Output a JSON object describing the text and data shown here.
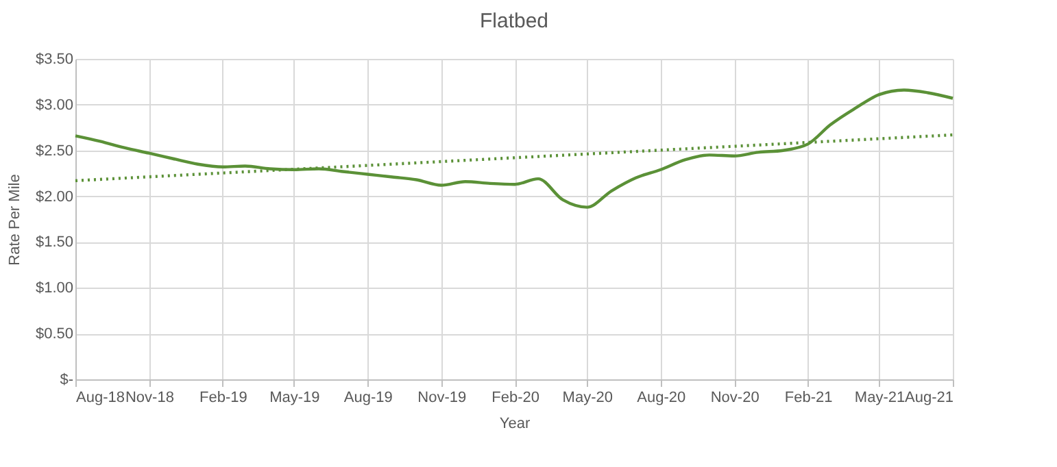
{
  "chart_data": {
    "type": "line",
    "title": "Flatbed",
    "xlabel": "Year",
    "ylabel": "Rate Per Mile",
    "x": [
      "2018-08",
      "2018-09",
      "2018-10",
      "2018-11",
      "2018-12",
      "2019-01",
      "2019-02",
      "2019-03",
      "2019-04",
      "2019-05",
      "2019-06",
      "2019-07",
      "2019-08",
      "2019-09",
      "2019-10",
      "2019-11",
      "2019-12",
      "2020-01",
      "2020-02",
      "2020-03",
      "2020-04",
      "2020-05",
      "2020-06",
      "2020-07",
      "2020-08",
      "2020-09",
      "2020-10",
      "2020-11",
      "2020-12",
      "2021-01",
      "2021-02",
      "2021-03",
      "2021-04",
      "2021-05",
      "2021-06",
      "2021-07",
      "2021-08"
    ],
    "series": [
      {
        "color": "#5b9137",
        "values": [
          2.66,
          2.6,
          2.53,
          2.47,
          2.41,
          2.35,
          2.32,
          2.33,
          2.3,
          2.29,
          2.3,
          2.27,
          2.24,
          2.21,
          2.18,
          2.12,
          2.16,
          2.14,
          2.13,
          2.19,
          1.96,
          1.88,
          2.06,
          2.2,
          2.29,
          2.4,
          2.45,
          2.44,
          2.48,
          2.5,
          2.57,
          2.78,
          2.96,
          3.11,
          3.16,
          3.13,
          3.07
        ]
      },
      {
        "type": "line",
        "line_style": "dotted",
        "color": "#5b9137",
        "x": [
          "2018-08",
          "2021-08"
        ],
        "values": [
          2.17,
          2.67
        ]
      }
    ],
    "xlim": [
      "2018-08",
      "2021-08"
    ],
    "xticks": [
      {
        "value": "2018-08",
        "label": "Aug-18"
      },
      {
        "value": "2018-11",
        "label": "Nov-18"
      },
      {
        "value": "2019-02",
        "label": "Feb-19"
      },
      {
        "value": "2019-05",
        "label": "May-19"
      },
      {
        "value": "2019-08",
        "label": "Aug-19"
      },
      {
        "value": "2019-11",
        "label": "Nov-19"
      },
      {
        "value": "2020-02",
        "label": "Feb-20"
      },
      {
        "value": "2020-05",
        "label": "May-20"
      },
      {
        "value": "2020-08",
        "label": "Aug-20"
      },
      {
        "value": "2020-11",
        "label": "Nov-20"
      },
      {
        "value": "2021-02",
        "label": "Feb-21"
      },
      {
        "value": "2021-05",
        "label": "May-21"
      },
      {
        "value": "2021-08",
        "label": "Aug-21"
      }
    ],
    "ylim": [
      0,
      3.5
    ],
    "yticks": [
      {
        "value": 0,
        "label": "$-"
      },
      {
        "value": 0.5,
        "label": "$0.50"
      },
      {
        "value": 1,
        "label": "$1.00"
      },
      {
        "value": 1.5,
        "label": "$1.50"
      },
      {
        "value": 2,
        "label": "$2.00"
      },
      {
        "value": 2.5,
        "label": "$2.50"
      },
      {
        "value": 3,
        "label": "$3.00"
      },
      {
        "value": 3.5,
        "label": "$3.50"
      }
    ],
    "grid": true,
    "line_style": "solid"
  }
}
